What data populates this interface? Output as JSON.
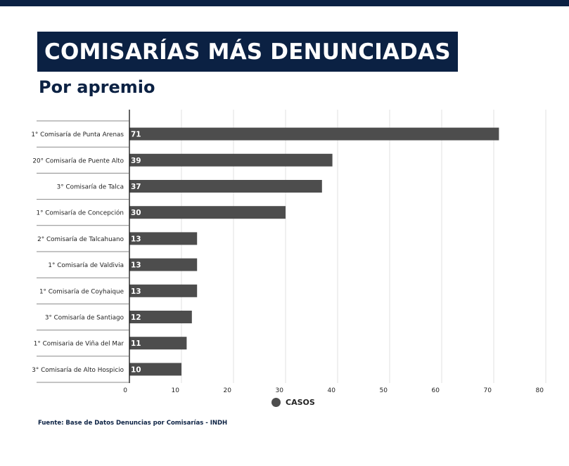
{
  "header": {
    "title": "COMISARÍAS MÁS DENUNCIADAS",
    "subtitle": "Por apremio"
  },
  "footer": {
    "source": "Fuente: Base de Datos Denuncias por Comisarías - INDH"
  },
  "colors": {
    "navy": "#0b2143",
    "bar": "#4d4d4d",
    "grid": "#e2e2e2"
  },
  "chart_data": {
    "type": "bar",
    "orientation": "horizontal",
    "categories": [
      "1° Comisaría de Punta Arenas",
      "20° Comisaría de Puente Alto",
      "3° Comisaría de Talca",
      "1° Comisaría de Concepción",
      "2° Comisaría de Talcahuano",
      "1° Comisaría de Valdivia",
      "1° Comisaría de Coyhaique",
      "3° Comisaría de Santiago",
      "1° Comisaria de Viña del Mar",
      "3° Comisaría de Alto Hospicio"
    ],
    "series": [
      {
        "name": "CASOS",
        "values": [
          71,
          39,
          37,
          30,
          13,
          13,
          13,
          12,
          11,
          10
        ]
      }
    ],
    "data_labels": [
      "71",
      "39",
      "37",
      "30",
      "13",
      "13",
      "13",
      "12",
      "11",
      "10"
    ],
    "xlim": [
      0,
      80
    ],
    "x_ticks": [
      0,
      10,
      20,
      30,
      40,
      50,
      60,
      70,
      80
    ],
    "x_tick_labels": [
      "0",
      "10",
      "20",
      "30",
      "40",
      "50",
      "60",
      "70",
      "80"
    ],
    "grid": true,
    "legend": "bottom"
  }
}
